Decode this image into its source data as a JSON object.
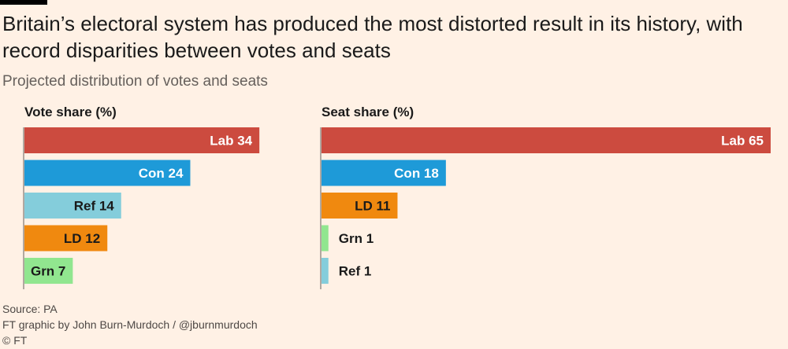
{
  "title": "Britain’s electoral system has produced the most distorted result in its history, with record disparities between votes and seats",
  "subtitle": "Projected distribution of votes and seats",
  "chart_data": [
    {
      "type": "bar",
      "orientation": "horizontal",
      "title": "Vote share (%)",
      "xlim": [
        0,
        65
      ],
      "bars": [
        {
          "party": "Lab",
          "value": 34,
          "label": "Lab 34",
          "color": "#cc4b3f"
        },
        {
          "party": "Con",
          "value": 24,
          "label": "Con 24",
          "color": "#1e9ad8"
        },
        {
          "party": "Ref",
          "value": 14,
          "label": "Ref 14",
          "color": "#84cddb"
        },
        {
          "party": "LD",
          "value": 12,
          "label": "LD 12",
          "color": "#f0890f"
        },
        {
          "party": "Grn",
          "value": 7,
          "label": "Grn 7",
          "color": "#91e68f"
        }
      ]
    },
    {
      "type": "bar",
      "orientation": "horizontal",
      "title": "Seat share (%)",
      "xlim": [
        0,
        65
      ],
      "bars": [
        {
          "party": "Lab",
          "value": 65,
          "label": "Lab 65",
          "color": "#cc4b3f"
        },
        {
          "party": "Con",
          "value": 18,
          "label": "Con 18",
          "color": "#1e9ad8"
        },
        {
          "party": "LD",
          "value": 11,
          "label": "LD 11",
          "color": "#f0890f"
        },
        {
          "party": "Grn",
          "value": 1,
          "label": "Grn 1",
          "color": "#91e68f"
        },
        {
          "party": "Ref",
          "value": 1,
          "label": "Ref 1",
          "color": "#84cddb"
        }
      ]
    }
  ],
  "footer": {
    "source": "Source: PA",
    "credit": "FT graphic by John Burn-Murdoch / @jburnmurdoch",
    "copyright": "© FT"
  }
}
